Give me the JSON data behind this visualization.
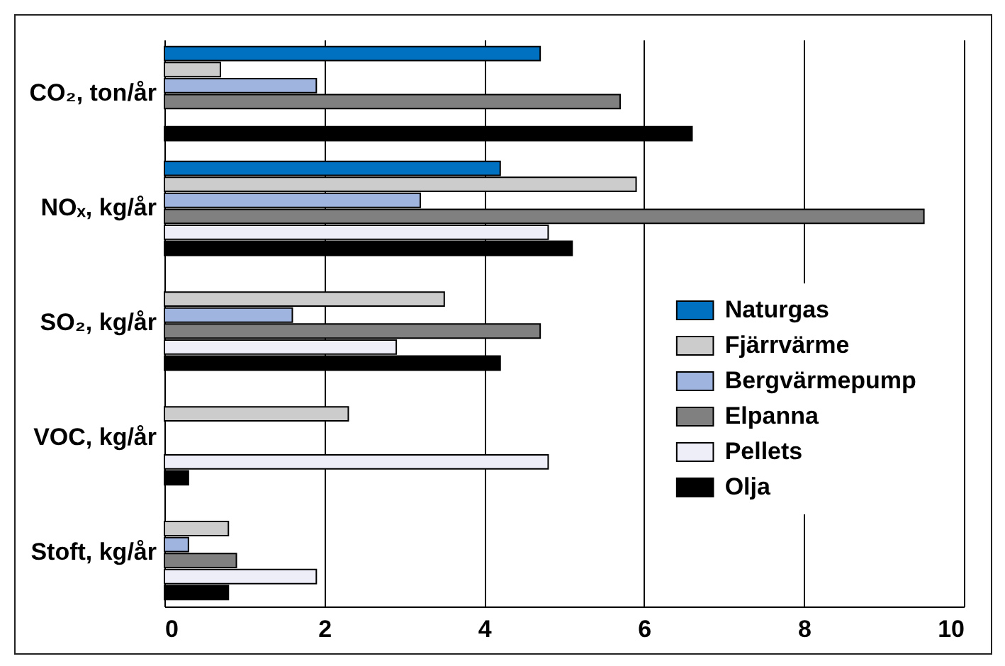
{
  "chart_data": {
    "type": "bar",
    "orientation": "horizontal",
    "categories": [
      "CO₂, ton/år",
      "NOₓ, kg/år",
      "SO₂, kg/år",
      "VOC, kg/år",
      "Stoft, kg/år"
    ],
    "series": [
      {
        "name": "Naturgas",
        "color": "#0070c0",
        "values": [
          4.7,
          4.2,
          null,
          null,
          null
        ]
      },
      {
        "name": "Fjärrvärme",
        "color": "#cccccc",
        "values": [
          0.7,
          5.9,
          3.5,
          2.3,
          0.8
        ]
      },
      {
        "name": "Bergvärmepump",
        "color": "#a0b4e0",
        "values": [
          1.9,
          3.2,
          1.6,
          null,
          0.3
        ]
      },
      {
        "name": "Elpanna",
        "color": "#808080",
        "values": [
          5.7,
          9.5,
          4.7,
          null,
          0.9
        ]
      },
      {
        "name": "Pellets",
        "color": "#eeeef8",
        "values": [
          null,
          4.8,
          2.9,
          4.8,
          1.9
        ]
      },
      {
        "name": "Olja",
        "color": "#000000",
        "values": [
          6.6,
          5.1,
          4.2,
          0.3,
          0.8
        ]
      }
    ],
    "xlim": [
      0,
      10
    ],
    "xticks": [
      0,
      2,
      4,
      6,
      8,
      10
    ],
    "grid": "x",
    "legend": "right"
  }
}
